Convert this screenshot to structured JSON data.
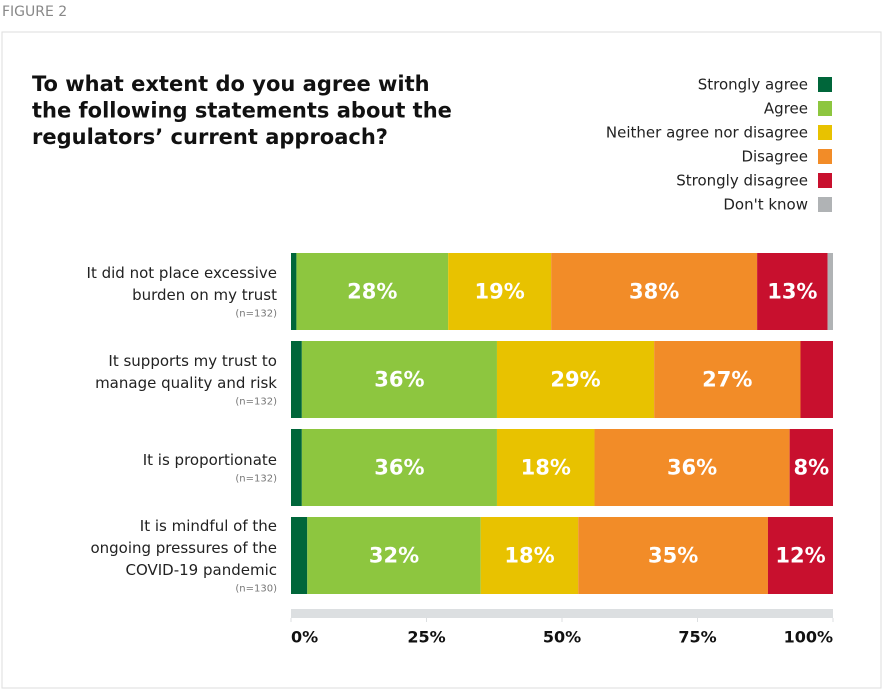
{
  "figure_label": "FIGURE 2",
  "chart_data": {
    "type": "stacked_bar_horizontal",
    "title": [
      "To what extent do you agree with",
      "the following statements about the",
      "regulators’ current approach?"
    ],
    "categories": [
      [
        "It did not place excessive",
        "burden on my trust"
      ],
      [
        "It supports my trust to",
        "manage quality and risk"
      ],
      [
        "It is proportionate"
      ],
      [
        "It is mindful of the",
        "ongoing pressures of the",
        "COVID-19 pandemic"
      ]
    ],
    "category_notes": [
      "(n=132)",
      "(n=132)",
      "(n=132)",
      "(n=130)"
    ],
    "series": [
      {
        "name": "Strongly agree",
        "color": "#00663a",
        "values": [
          1,
          2,
          2,
          3
        ],
        "value_labels": [
          null,
          null,
          null,
          null
        ]
      },
      {
        "name": "Agree",
        "color": "#8dc63f",
        "values": [
          28,
          36,
          36,
          32
        ],
        "value_labels": [
          "28%",
          "36%",
          "36%",
          "32%"
        ]
      },
      {
        "name": "Neither agree nor disagree",
        "color": "#e8c200",
        "values": [
          19,
          29,
          18,
          18
        ],
        "value_labels": [
          "19%",
          "29%",
          "18%",
          "18%"
        ]
      },
      {
        "name": "Disagree",
        "color": "#f28c28",
        "values": [
          38,
          27,
          36,
          35
        ],
        "value_labels": [
          "38%",
          "27%",
          "36%",
          "35%"
        ]
      },
      {
        "name": "Strongly disagree",
        "color": "#c8102e",
        "values": [
          13,
          6,
          8,
          12
        ],
        "value_labels": [
          "13%",
          null,
          "8%",
          "12%"
        ]
      },
      {
        "name": "Don't know",
        "color": "#b0b3b5",
        "values": [
          1,
          0,
          0,
          0
        ],
        "value_labels": [
          null,
          null,
          null,
          null
        ]
      }
    ],
    "xlim": [
      0,
      100
    ],
    "xticks": [
      {
        "value": 0,
        "label": "0%"
      },
      {
        "value": 25,
        "label": "25%"
      },
      {
        "value": 50,
        "label": "50%"
      },
      {
        "value": 75,
        "label": "75%"
      },
      {
        "value": 100,
        "label": "100%"
      }
    ],
    "legend": "top-right"
  }
}
